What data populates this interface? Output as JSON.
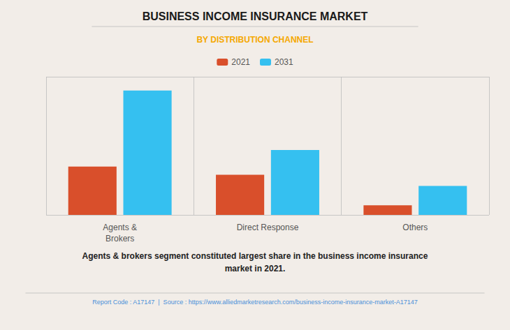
{
  "chart_data": {
    "type": "bar",
    "title": "BUSINESS INCOME INSURANCE MARKET",
    "subtitle": "BY DISTRIBUTION CHANNEL",
    "categories": [
      "Agents &\nBrokers",
      "Direct Response",
      "Others"
    ],
    "series": [
      {
        "name": "2021",
        "color": "#D94F2B",
        "values": [
          35,
          29,
          7
        ]
      },
      {
        "name": "2031",
        "color": "#35C0F0",
        "values": [
          90,
          47,
          21
        ]
      }
    ],
    "ylim": [
      0,
      100
    ],
    "grid": false,
    "tick_labels": "x",
    "legend": "top",
    "annotations": [
      "Agents & brokers segment constituted largest share in the business income insurance\nmarket in 2021.",
      "Report Code : A17147  |  Source : https://www.alliedmarketresearch.com/business-income-insurance-market-A17147"
    ]
  }
}
